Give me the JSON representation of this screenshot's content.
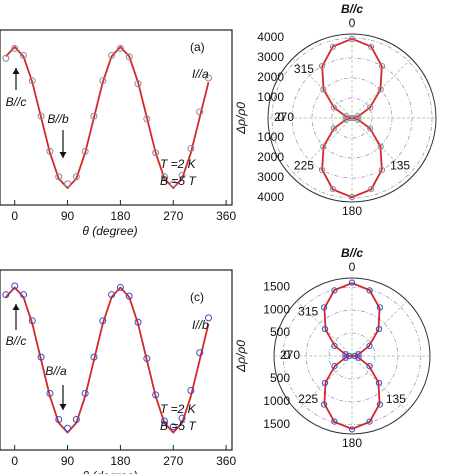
{
  "chart_data": [
    {
      "type": "line",
      "xlabel": "θ (degree)",
      "xlim": [
        -25,
        370
      ],
      "xticks": [
        0,
        90,
        180,
        270,
        360
      ],
      "ylim": [
        -0.12,
        1.12
      ],
      "x": [
        -15,
        0,
        15,
        30,
        45,
        60,
        75,
        90,
        105,
        120,
        135,
        150,
        165,
        180,
        195,
        210,
        225,
        240,
        255,
        270,
        285,
        300,
        315,
        330
      ],
      "series": [
        {
          "color": "#d62728",
          "marker": "line",
          "values": [
            0.933,
            1,
            0.933,
            0.75,
            0.5,
            0.25,
            0.067,
            0,
            0.067,
            0.25,
            0.5,
            0.75,
            0.933,
            1,
            0.933,
            0.75,
            0.5,
            0.25,
            0.067,
            0,
            0.067,
            0.25,
            0.5,
            0.75
          ]
        },
        {
          "color": "#8a8a9a",
          "marker": "circle",
          "values": [
            0.92,
            0.99,
            0.94,
            0.76,
            0.51,
            0.26,
            0.08,
            0.03,
            0.08,
            0.26,
            0.51,
            0.76,
            0.94,
            0.99,
            0.93,
            0.74,
            0.49,
            0.25,
            0.08,
            0.03,
            0.09,
            0.28,
            0.54,
            0.78
          ]
        }
      ],
      "annotations": [
        "(a)",
        "I//a",
        "B//c",
        "B//b",
        "T =2 K",
        "B =5 T"
      ]
    },
    {
      "type": "polar",
      "title": "B//c",
      "ylabel": "Δρ/ρ0",
      "rlim": [
        0,
        4200
      ],
      "rticks": [
        0,
        1000,
        2000,
        3000,
        4000
      ],
      "angle_ticks": [
        0,
        135,
        180,
        225,
        270,
        315
      ],
      "angles": [
        0,
        15,
        30,
        45,
        60,
        75,
        90,
        105,
        120,
        135,
        150,
        165,
        180,
        195,
        210,
        225,
        240,
        255,
        270,
        285,
        300,
        315,
        330,
        345
      ],
      "series": [
        {
          "color": "#d62728",
          "marker": "line",
          "values": [
            3960,
            3700,
            2985,
            2010,
            1035,
            320,
            60,
            320,
            1035,
            2010,
            2985,
            3700,
            3960,
            3700,
            2985,
            2010,
            1035,
            320,
            60,
            320,
            1035,
            2010,
            2985,
            3700
          ]
        },
        {
          "color": "#8a8a9a",
          "marker": "circle",
          "values": [
            3950,
            3680,
            3000,
            2030,
            1050,
            330,
            80,
            330,
            1050,
            2030,
            3000,
            3680,
            3950,
            3680,
            3000,
            2030,
            1050,
            330,
            80,
            330,
            1050,
            2030,
            3000,
            3680
          ]
        }
      ]
    },
    {
      "type": "line",
      "xlabel": "θ (degree)",
      "xlim": [
        -25,
        370
      ],
      "xticks": [
        0,
        90,
        180,
        270,
        360
      ],
      "ylim": [
        -0.12,
        1.12
      ],
      "x": [
        -15,
        0,
        15,
        30,
        45,
        60,
        75,
        90,
        105,
        120,
        135,
        150,
        165,
        180,
        195,
        210,
        225,
        240,
        255,
        270,
        285,
        300,
        315,
        330
      ],
      "series": [
        {
          "color": "#d62728",
          "marker": "line",
          "values": [
            0.933,
            1,
            0.933,
            0.75,
            0.5,
            0.25,
            0.067,
            0,
            0.067,
            0.25,
            0.5,
            0.75,
            0.933,
            1,
            0.933,
            0.75,
            0.5,
            0.25,
            0.067,
            0,
            0.067,
            0.25,
            0.5,
            0.75
          ]
        },
        {
          "color": "#3b4cc0",
          "marker": "circle",
          "values": [
            0.95,
            1.01,
            0.95,
            0.77,
            0.52,
            0.27,
            0.09,
            0.03,
            0.09,
            0.27,
            0.52,
            0.77,
            0.95,
            1.0,
            0.94,
            0.76,
            0.51,
            0.26,
            0.08,
            0.04,
            0.1,
            0.29,
            0.55,
            0.79
          ]
        }
      ],
      "annotations": [
        "(c)",
        "I//b",
        "B//c",
        "B//a",
        "T =2 K",
        "B =5 T"
      ]
    },
    {
      "type": "polar",
      "title": "B//c",
      "ylabel": "Δρ/ρ0",
      "rlim": [
        0,
        1700
      ],
      "rticks": [
        0,
        500,
        1000,
        1500
      ],
      "angle_ticks": [
        0,
        135,
        180,
        225,
        270,
        315
      ],
      "angles": [
        0,
        15,
        30,
        45,
        60,
        75,
        90,
        105,
        120,
        135,
        150,
        165,
        180,
        195,
        210,
        225,
        240,
        255,
        270,
        285,
        300,
        315,
        330,
        345
      ],
      "series": [
        {
          "color": "#d62728",
          "marker": "line",
          "values": [
            1590,
            1486,
            1203,
            815,
            428,
            144,
            40,
            144,
            428,
            815,
            1203,
            1486,
            1590,
            1486,
            1203,
            815,
            428,
            144,
            40,
            144,
            428,
            815,
            1203,
            1486
          ]
        },
        {
          "color": "#3b4cc0",
          "marker": "circle",
          "values": [
            1600,
            1480,
            1220,
            830,
            440,
            150,
            60,
            150,
            440,
            830,
            1220,
            1480,
            1600,
            1480,
            1220,
            830,
            440,
            150,
            60,
            150,
            440,
            830,
            1220,
            1480
          ]
        }
      ]
    }
  ]
}
